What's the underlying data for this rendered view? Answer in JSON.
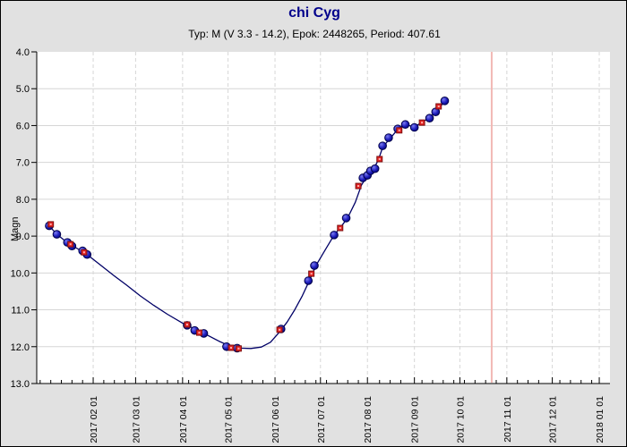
{
  "chart_data": {
    "type": "line",
    "title": "chi Cyg",
    "subtitle": "Typ: M (V 3.3 - 14.2), Epok: 2448265, Period: 407.61",
    "ylabel": "Magn",
    "y_axis": {
      "min": 4.0,
      "max": 13.0,
      "inverted": true,
      "tick_labels": [
        "4.0",
        "5.0",
        "6.0",
        "7.0",
        "8.0",
        "9.0",
        "10.0",
        "11.0",
        "12.0",
        "13.0"
      ]
    },
    "x_axis": {
      "month_ticks": [
        "2017-02-01",
        "2017-03-01",
        "2017-04-01",
        "2017-05-01",
        "2017-06-01",
        "2017-07-01",
        "2017-08-01",
        "2017-09-01",
        "2017-10-01",
        "2017-11-01",
        "2017-12-01",
        "2018-01-01"
      ],
      "month_tick_labels": [
        "2017 02 01",
        "2017 03 01",
        "2017 04 01",
        "2017 05 01",
        "2017 06 01",
        "2017 07 01",
        "2017 08 01",
        "2017 09 01",
        "2017 10 01",
        "2017 11 01",
        "2017 12 01",
        "2018 01 01"
      ]
    },
    "reference_line": {
      "name": "current-date-line",
      "date": "2017-10-22",
      "color": "#f2b8b4"
    },
    "grid": {
      "horizontal": "solid",
      "vertical": "dashed",
      "color": "#d6d6d6"
    },
    "series": [
      {
        "name": "observations-blue",
        "marker": "circle",
        "color": "#2222c0",
        "edge_color": "#00004a",
        "points": [
          [
            "2017-01-03",
            8.72
          ],
          [
            "2017-01-08",
            8.95
          ],
          [
            "2017-01-15",
            9.17
          ],
          [
            "2017-01-18",
            9.27
          ],
          [
            "2017-01-25",
            9.4
          ],
          [
            "2017-01-28",
            9.5
          ],
          [
            "2017-04-04",
            11.42
          ],
          [
            "2017-04-09",
            11.56
          ],
          [
            "2017-04-15",
            11.64
          ],
          [
            "2017-04-30",
            12.0
          ],
          [
            "2017-05-07",
            12.04
          ],
          [
            "2017-06-05",
            11.52
          ],
          [
            "2017-06-23",
            10.21
          ],
          [
            "2017-06-27",
            9.8
          ],
          [
            "2017-07-10",
            8.97
          ],
          [
            "2017-07-18",
            8.51
          ],
          [
            "2017-07-29",
            7.42
          ],
          [
            "2017-08-01",
            7.35
          ],
          [
            "2017-08-03",
            7.23
          ],
          [
            "2017-08-06",
            7.17
          ],
          [
            "2017-08-11",
            6.55
          ],
          [
            "2017-08-15",
            6.33
          ],
          [
            "2017-08-21",
            6.09
          ],
          [
            "2017-08-26",
            5.97
          ],
          [
            "2017-09-01",
            6.05
          ],
          [
            "2017-09-11",
            5.8
          ],
          [
            "2017-09-15",
            5.63
          ],
          [
            "2017-09-21",
            5.33
          ]
        ]
      },
      {
        "name": "observations-red",
        "marker": "square",
        "color": "#e02323",
        "edge_color": "#7d1111",
        "points": [
          [
            "2017-01-04",
            8.68
          ],
          [
            "2017-01-17",
            9.22
          ],
          [
            "2017-01-26",
            9.44
          ],
          [
            "2017-04-04",
            11.4
          ],
          [
            "2017-04-12",
            11.62
          ],
          [
            "2017-05-03",
            12.03
          ],
          [
            "2017-05-08",
            12.05
          ],
          [
            "2017-06-04",
            11.54
          ],
          [
            "2017-06-25",
            10.02
          ],
          [
            "2017-07-14",
            8.78
          ],
          [
            "2017-07-26",
            7.64
          ],
          [
            "2017-08-09",
            6.91
          ],
          [
            "2017-08-22",
            6.13
          ],
          [
            "2017-09-06",
            5.92
          ],
          [
            "2017-09-17",
            5.48
          ]
        ]
      }
    ],
    "mean_curve": {
      "name": "mean-light-curve",
      "color": "#000066",
      "points": [
        [
          "2017-01-02",
          8.68
        ],
        [
          "2017-01-08",
          8.95
        ],
        [
          "2017-01-15",
          9.18
        ],
        [
          "2017-01-22",
          9.35
        ],
        [
          "2017-01-28",
          9.5
        ],
        [
          "2017-02-05",
          9.76
        ],
        [
          "2017-02-14",
          10.05
        ],
        [
          "2017-02-23",
          10.33
        ],
        [
          "2017-03-04",
          10.62
        ],
        [
          "2017-03-13",
          10.88
        ],
        [
          "2017-03-22",
          11.12
        ],
        [
          "2017-04-01",
          11.36
        ],
        [
          "2017-04-09",
          11.52
        ],
        [
          "2017-04-17",
          11.68
        ],
        [
          "2017-04-25",
          11.85
        ],
        [
          "2017-05-02",
          11.98
        ],
        [
          "2017-05-09",
          12.04
        ],
        [
          "2017-05-16",
          12.05
        ],
        [
          "2017-05-23",
          12.01
        ],
        [
          "2017-05-29",
          11.88
        ],
        [
          "2017-06-04",
          11.6
        ],
        [
          "2017-06-09",
          11.33
        ],
        [
          "2017-06-14",
          11.0
        ],
        [
          "2017-06-19",
          10.62
        ],
        [
          "2017-06-24",
          10.18
        ],
        [
          "2017-06-28",
          9.8
        ],
        [
          "2017-07-04",
          9.38
        ],
        [
          "2017-07-10",
          8.97
        ],
        [
          "2017-07-15",
          8.72
        ],
        [
          "2017-07-19",
          8.5
        ],
        [
          "2017-07-24",
          8.08
        ],
        [
          "2017-07-28",
          7.62
        ],
        [
          "2017-08-01",
          7.35
        ],
        [
          "2017-08-05",
          7.18
        ],
        [
          "2017-08-08",
          6.95
        ],
        [
          "2017-08-11",
          6.6
        ],
        [
          "2017-08-14",
          6.44
        ],
        [
          "2017-08-17",
          6.3
        ],
        [
          "2017-08-21",
          6.1
        ],
        [
          "2017-08-26",
          5.97
        ],
        [
          "2017-09-01",
          6.04
        ],
        [
          "2017-09-06",
          5.91
        ],
        [
          "2017-09-11",
          5.79
        ],
        [
          "2017-09-15",
          5.63
        ],
        [
          "2017-09-18",
          5.5
        ],
        [
          "2017-09-21",
          5.33
        ]
      ]
    }
  },
  "colors": {
    "window_background": "#e1e1e1",
    "plot_background": "#ffffff",
    "axis": "#000000",
    "title": "#00008b",
    "grid": "#d6d6d6"
  }
}
